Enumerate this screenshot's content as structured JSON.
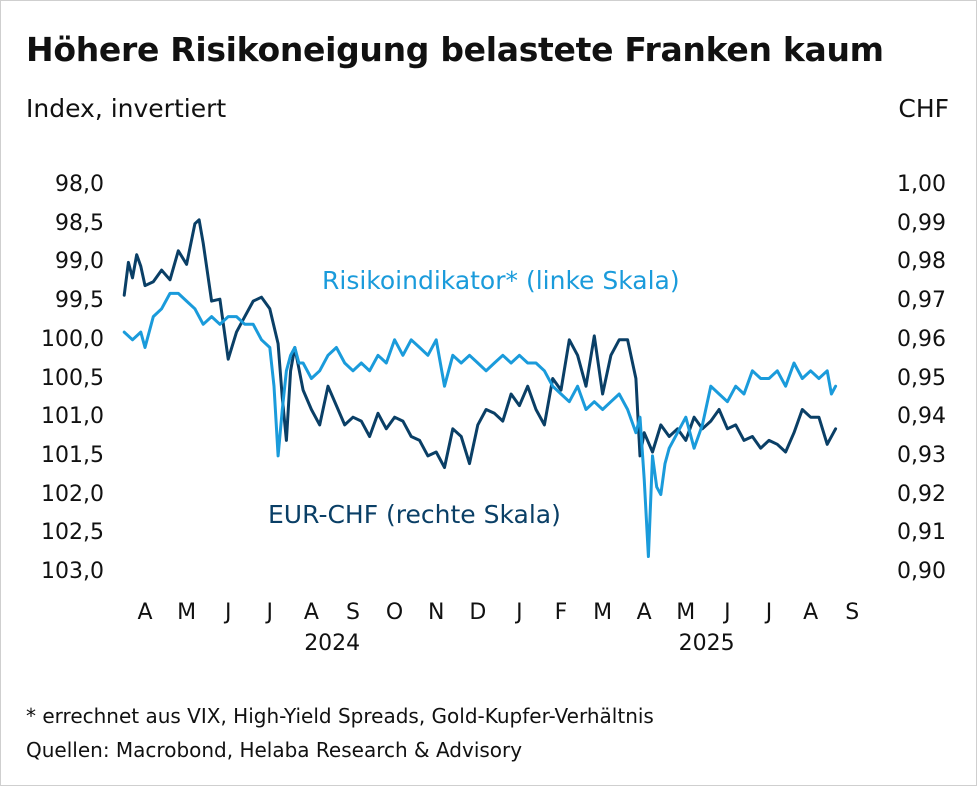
{
  "chart_data": {
    "type": "line",
    "title": "Höhere Risikoneigung belastete Franken kaum",
    "ylabel_left": "Index, invertiert",
    "ylabel_right": "CHF",
    "y_left": {
      "min": 98.0,
      "max": 103.0,
      "inverted": true,
      "ticks": [
        "98,0",
        "98,5",
        "99,0",
        "99,5",
        "100,0",
        "100,5",
        "101,0",
        "101,5",
        "102,0",
        "102,5",
        "103,0"
      ]
    },
    "y_right": {
      "min": 0.9,
      "max": 1.0,
      "ticks": [
        "1,00",
        "0,99",
        "0,98",
        "0,97",
        "0,96",
        "0,95",
        "0,94",
        "0,93",
        "0,92",
        "0,91",
        "0,90"
      ]
    },
    "x_months": [
      "A",
      "M",
      "J",
      "J",
      "A",
      "S",
      "O",
      "N",
      "D",
      "J",
      "F",
      "M",
      "A",
      "M",
      "J",
      "J",
      "A",
      "S"
    ],
    "x_years": [
      {
        "label": "2024",
        "month_index": 4.5
      },
      {
        "label": "2025",
        "month_index": 13.5
      }
    ],
    "grid": false,
    "series": [
      {
        "name": "Risikoindikator* (linke Skala)",
        "label": "Risikoindikator* (linke Skala)",
        "axis": "left",
        "color": "#1a9bdb",
        "x": [
          -0.5,
          -0.3,
          -0.1,
          0.0,
          0.2,
          0.4,
          0.6,
          0.8,
          1.0,
          1.2,
          1.4,
          1.6,
          1.8,
          2.0,
          2.2,
          2.4,
          2.6,
          2.8,
          3.0,
          3.1,
          3.2,
          3.3,
          3.4,
          3.5,
          3.6,
          3.7,
          3.8,
          4.0,
          4.2,
          4.4,
          4.6,
          4.8,
          5.0,
          5.2,
          5.4,
          5.6,
          5.8,
          6.0,
          6.2,
          6.4,
          6.6,
          6.8,
          7.0,
          7.2,
          7.4,
          7.6,
          7.8,
          8.0,
          8.2,
          8.4,
          8.6,
          8.8,
          9.0,
          9.2,
          9.4,
          9.6,
          9.8,
          10.0,
          10.2,
          10.4,
          10.6,
          10.8,
          11.0,
          11.2,
          11.4,
          11.6,
          11.8,
          11.9,
          12.0,
          12.1,
          12.2,
          12.3,
          12.4,
          12.5,
          12.6,
          12.8,
          13.0,
          13.2,
          13.4,
          13.6,
          13.8,
          14.0,
          14.2,
          14.4,
          14.6,
          14.8,
          15.0,
          15.2,
          15.4,
          15.6,
          15.8,
          16.0,
          16.2,
          16.4,
          16.5,
          16.6
        ],
        "values": [
          99.9,
          100.0,
          99.9,
          100.1,
          99.7,
          99.6,
          99.4,
          99.4,
          99.5,
          99.6,
          99.8,
          99.7,
          99.8,
          99.7,
          99.7,
          99.8,
          99.8,
          100.0,
          100.1,
          100.6,
          101.5,
          100.9,
          100.4,
          100.2,
          100.1,
          100.3,
          100.3,
          100.5,
          100.4,
          100.2,
          100.1,
          100.3,
          100.4,
          100.3,
          100.4,
          100.2,
          100.3,
          100.0,
          100.2,
          100.0,
          100.1,
          100.2,
          100.0,
          100.6,
          100.2,
          100.3,
          100.2,
          100.3,
          100.4,
          100.3,
          100.2,
          100.3,
          100.2,
          100.3,
          100.3,
          100.4,
          100.6,
          100.7,
          100.8,
          100.6,
          100.9,
          100.8,
          100.9,
          100.8,
          100.7,
          100.9,
          101.2,
          101.0,
          101.8,
          102.8,
          101.5,
          101.9,
          102.0,
          101.6,
          101.4,
          101.2,
          101.0,
          101.4,
          101.1,
          100.6,
          100.7,
          100.8,
          100.6,
          100.7,
          100.4,
          100.5,
          100.5,
          100.4,
          100.6,
          100.3,
          100.5,
          100.4,
          100.5,
          100.4,
          100.7,
          100.6
        ]
      },
      {
        "name": "EUR-CHF (rechte Skala)",
        "label": "EUR-CHF (rechte Skala)",
        "axis": "right",
        "color": "#0a3f66",
        "x": [
          -0.5,
          -0.4,
          -0.3,
          -0.2,
          -0.1,
          0.0,
          0.2,
          0.4,
          0.6,
          0.8,
          1.0,
          1.2,
          1.3,
          1.4,
          1.6,
          1.8,
          2.0,
          2.2,
          2.4,
          2.6,
          2.8,
          3.0,
          3.2,
          3.3,
          3.4,
          3.5,
          3.6,
          3.8,
          4.0,
          4.2,
          4.4,
          4.6,
          4.8,
          5.0,
          5.2,
          5.4,
          5.6,
          5.8,
          6.0,
          6.2,
          6.4,
          6.6,
          6.8,
          7.0,
          7.2,
          7.4,
          7.6,
          7.8,
          8.0,
          8.2,
          8.4,
          8.6,
          8.8,
          9.0,
          9.2,
          9.4,
          9.6,
          9.8,
          10.0,
          10.2,
          10.4,
          10.6,
          10.8,
          11.0,
          11.2,
          11.4,
          11.6,
          11.8,
          11.9,
          12.0,
          12.2,
          12.4,
          12.6,
          12.8,
          13.0,
          13.2,
          13.4,
          13.6,
          13.8,
          14.0,
          14.2,
          14.4,
          14.6,
          14.8,
          15.0,
          15.2,
          15.4,
          15.6,
          15.8,
          16.0,
          16.2,
          16.4,
          16.6
        ],
        "values": [
          0.9715,
          0.98,
          0.976,
          0.982,
          0.979,
          0.974,
          0.975,
          0.978,
          0.9755,
          0.983,
          0.9795,
          0.99,
          0.991,
          0.985,
          0.97,
          0.9705,
          0.955,
          0.962,
          0.966,
          0.97,
          0.971,
          0.968,
          0.959,
          0.945,
          0.934,
          0.952,
          0.958,
          0.947,
          0.942,
          0.938,
          0.948,
          0.943,
          0.938,
          0.94,
          0.939,
          0.935,
          0.941,
          0.937,
          0.94,
          0.939,
          0.935,
          0.934,
          0.93,
          0.931,
          0.927,
          0.937,
          0.935,
          0.928,
          0.938,
          0.942,
          0.941,
          0.939,
          0.946,
          0.943,
          0.948,
          0.942,
          0.938,
          0.95,
          0.947,
          0.96,
          0.956,
          0.948,
          0.961,
          0.946,
          0.956,
          0.96,
          0.96,
          0.95,
          0.93,
          0.936,
          0.931,
          0.938,
          0.935,
          0.937,
          0.934,
          0.94,
          0.937,
          0.939,
          0.942,
          0.937,
          0.938,
          0.934,
          0.935,
          0.932,
          0.934,
          0.933,
          0.931,
          0.936,
          0.942,
          0.94,
          0.94,
          0.933,
          0.937
        ]
      }
    ],
    "annotations": {
      "footnote": "* errechnet aus VIX, High-Yield Spreads, Gold-Kupfer-Verhältnis",
      "sources": "Quellen: Macrobond, Helaba Research & Advisory"
    }
  }
}
